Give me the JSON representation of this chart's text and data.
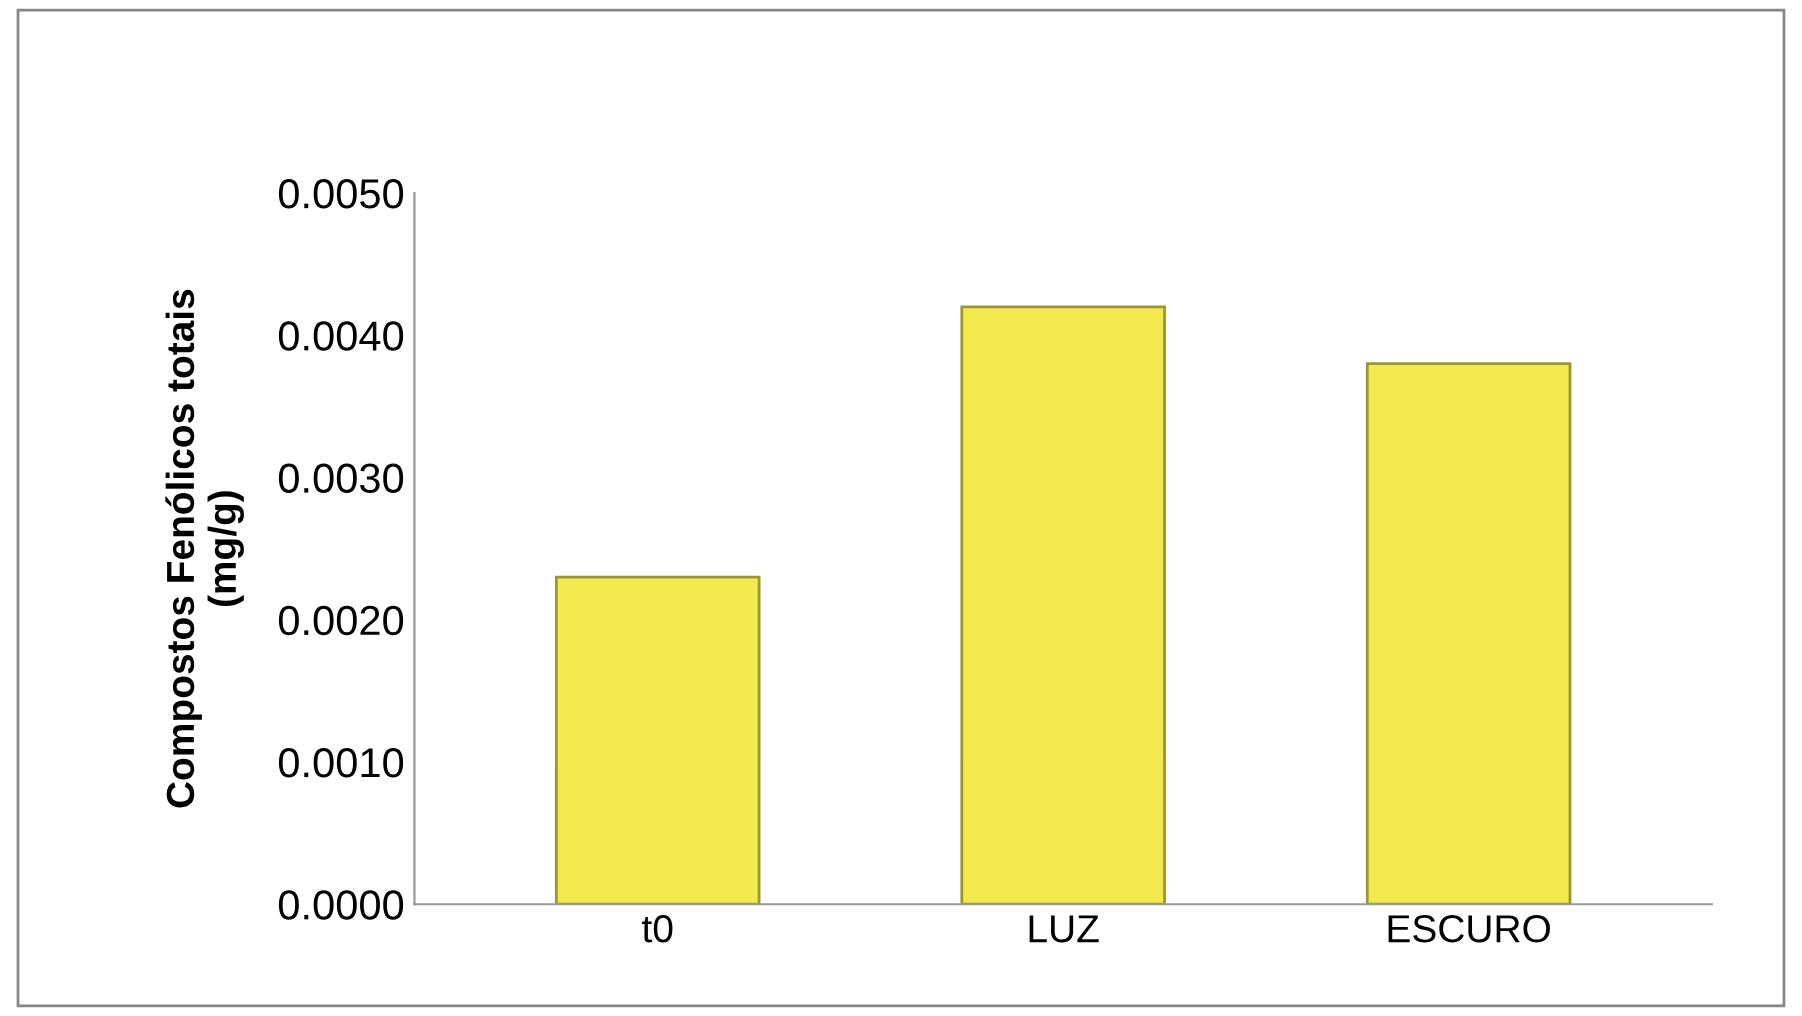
{
  "chart_data": {
    "type": "bar",
    "ylabel": "Compostos Fenólicos totais\n(mg/g)",
    "categories": [
      "t0",
      "LUZ",
      "ESCURO"
    ],
    "values": [
      0.0023,
      0.0042,
      0.0038
    ],
    "color": "#f2e94e",
    "ylim": [
      0,
      0.005
    ],
    "yticks": [
      {
        "value": 0,
        "label": "0.0000"
      },
      {
        "value": 0.001,
        "label": "0.0010"
      },
      {
        "value": 0.002,
        "label": "0.0020"
      },
      {
        "value": 0.003,
        "label": "0.0030"
      },
      {
        "value": 0.004,
        "label": "0.0040"
      },
      {
        "value": 0.005,
        "label": "0.0050"
      }
    ],
    "grid": false,
    "legend": false
  }
}
